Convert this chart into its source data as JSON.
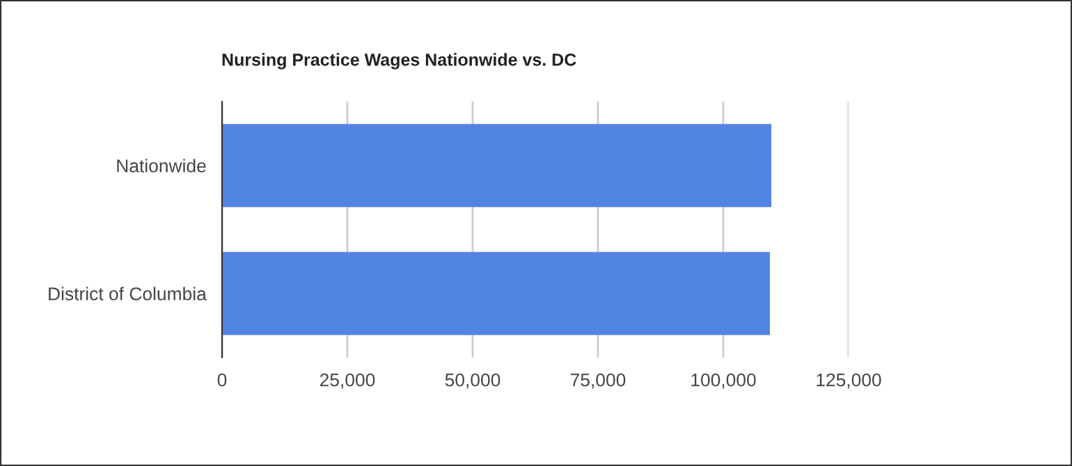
{
  "chart_data": {
    "type": "bar",
    "orientation": "horizontal",
    "title": "Nursing Practice Wages Nationwide vs. DC",
    "categories": [
      "Nationwide",
      "District of Columbia"
    ],
    "series": [
      {
        "color": "#5285e2",
        "values": [
          109600,
          109300
        ]
      }
    ],
    "xlim": [
      0,
      125000
    ],
    "xticks": [
      {
        "value": 0,
        "label": "0"
      },
      {
        "value": 25000,
        "label": "25,000"
      },
      {
        "value": 50000,
        "label": "50,000"
      },
      {
        "value": 75000,
        "label": "75,000"
      },
      {
        "value": 100000,
        "label": "100,000"
      },
      {
        "value": 125000,
        "label": "125,000"
      }
    ],
    "grid": "x",
    "legend": false
  }
}
